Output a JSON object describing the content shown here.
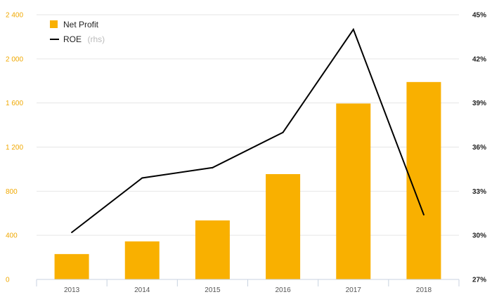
{
  "chart_data": {
    "type": "bar",
    "categories": [
      "2013",
      "2014",
      "2015",
      "2016",
      "2017",
      "2018"
    ],
    "series": [
      {
        "name": "Net Profit",
        "type": "bar",
        "axis": "left",
        "color": "#f9b000",
        "values": [
          230,
          345,
          535,
          955,
          1595,
          1790
        ]
      },
      {
        "name": "ROE",
        "type": "line",
        "axis": "right",
        "color": "#000000",
        "values": [
          30.2,
          33.9,
          34.6,
          37.0,
          44.0,
          31.4
        ]
      }
    ],
    "legend": {
      "items": [
        {
          "label": "Net Profit",
          "suffix": ""
        },
        {
          "label": "ROE",
          "suffix": "(rhs)"
        }
      ],
      "position": "top-left"
    },
    "y_left": {
      "ylim": [
        0,
        2400
      ],
      "ticks": [
        0,
        400,
        800,
        1200,
        1600,
        2000,
        2400
      ],
      "tick_labels": [
        "0",
        "400",
        "800",
        "1 200",
        "1 600",
        "2 000",
        "2 400"
      ]
    },
    "y_right": {
      "ylim": [
        27,
        45
      ],
      "ticks": [
        27,
        30,
        33,
        36,
        39,
        42,
        45
      ],
      "tick_labels": [
        "27%",
        "30%",
        "33%",
        "36%",
        "39%",
        "42%",
        "45%"
      ]
    },
    "grid": true,
    "grid_color": "#e6e6e6",
    "tick_color_left": "#f0a800"
  }
}
